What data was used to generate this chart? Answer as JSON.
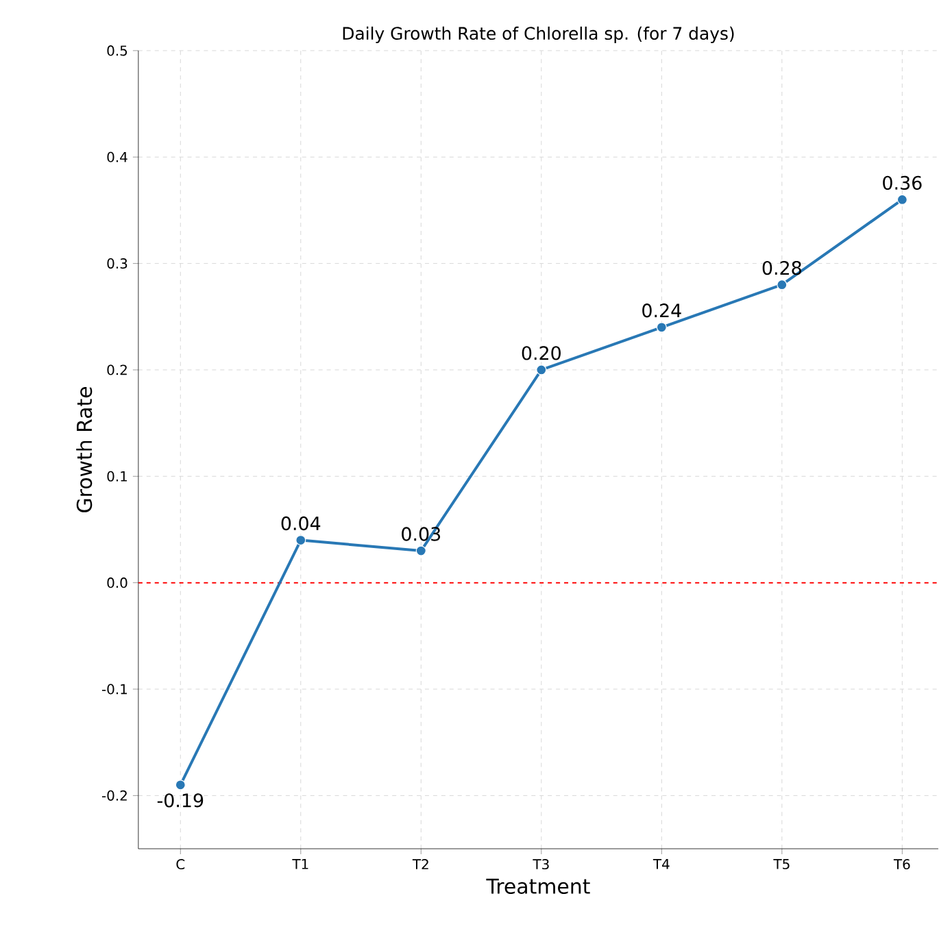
{
  "chart_data": {
    "type": "line",
    "title": "Daily Growth Rate of Chlorella sp. (for 7 days)",
    "xlabel": "Treatment",
    "ylabel": "Growth Rate",
    "categories": [
      "C",
      "T1",
      "T2",
      "T3",
      "T4",
      "T5",
      "T6"
    ],
    "values": [
      -0.19,
      0.04,
      0.03,
      0.2,
      0.24,
      0.28,
      0.36
    ],
    "value_labels": [
      "-0.19",
      "0.04",
      "0.03",
      "0.20",
      "0.24",
      "0.28",
      "0.36"
    ],
    "color": "#2878b5",
    "marker": "circle",
    "line_style": "solid",
    "ylim": [
      -0.25,
      0.5
    ],
    "yticks": [
      -0.2,
      -0.1,
      {
        "value": 0,
        "label": "0.0"
      },
      0.1,
      0.2,
      0.3,
      0.4,
      0.5
    ],
    "grid": true,
    "ref_lines": [
      {
        "axis": "y",
        "value": 0,
        "color": "#ff0000",
        "line_style": "dashed"
      }
    ]
  }
}
